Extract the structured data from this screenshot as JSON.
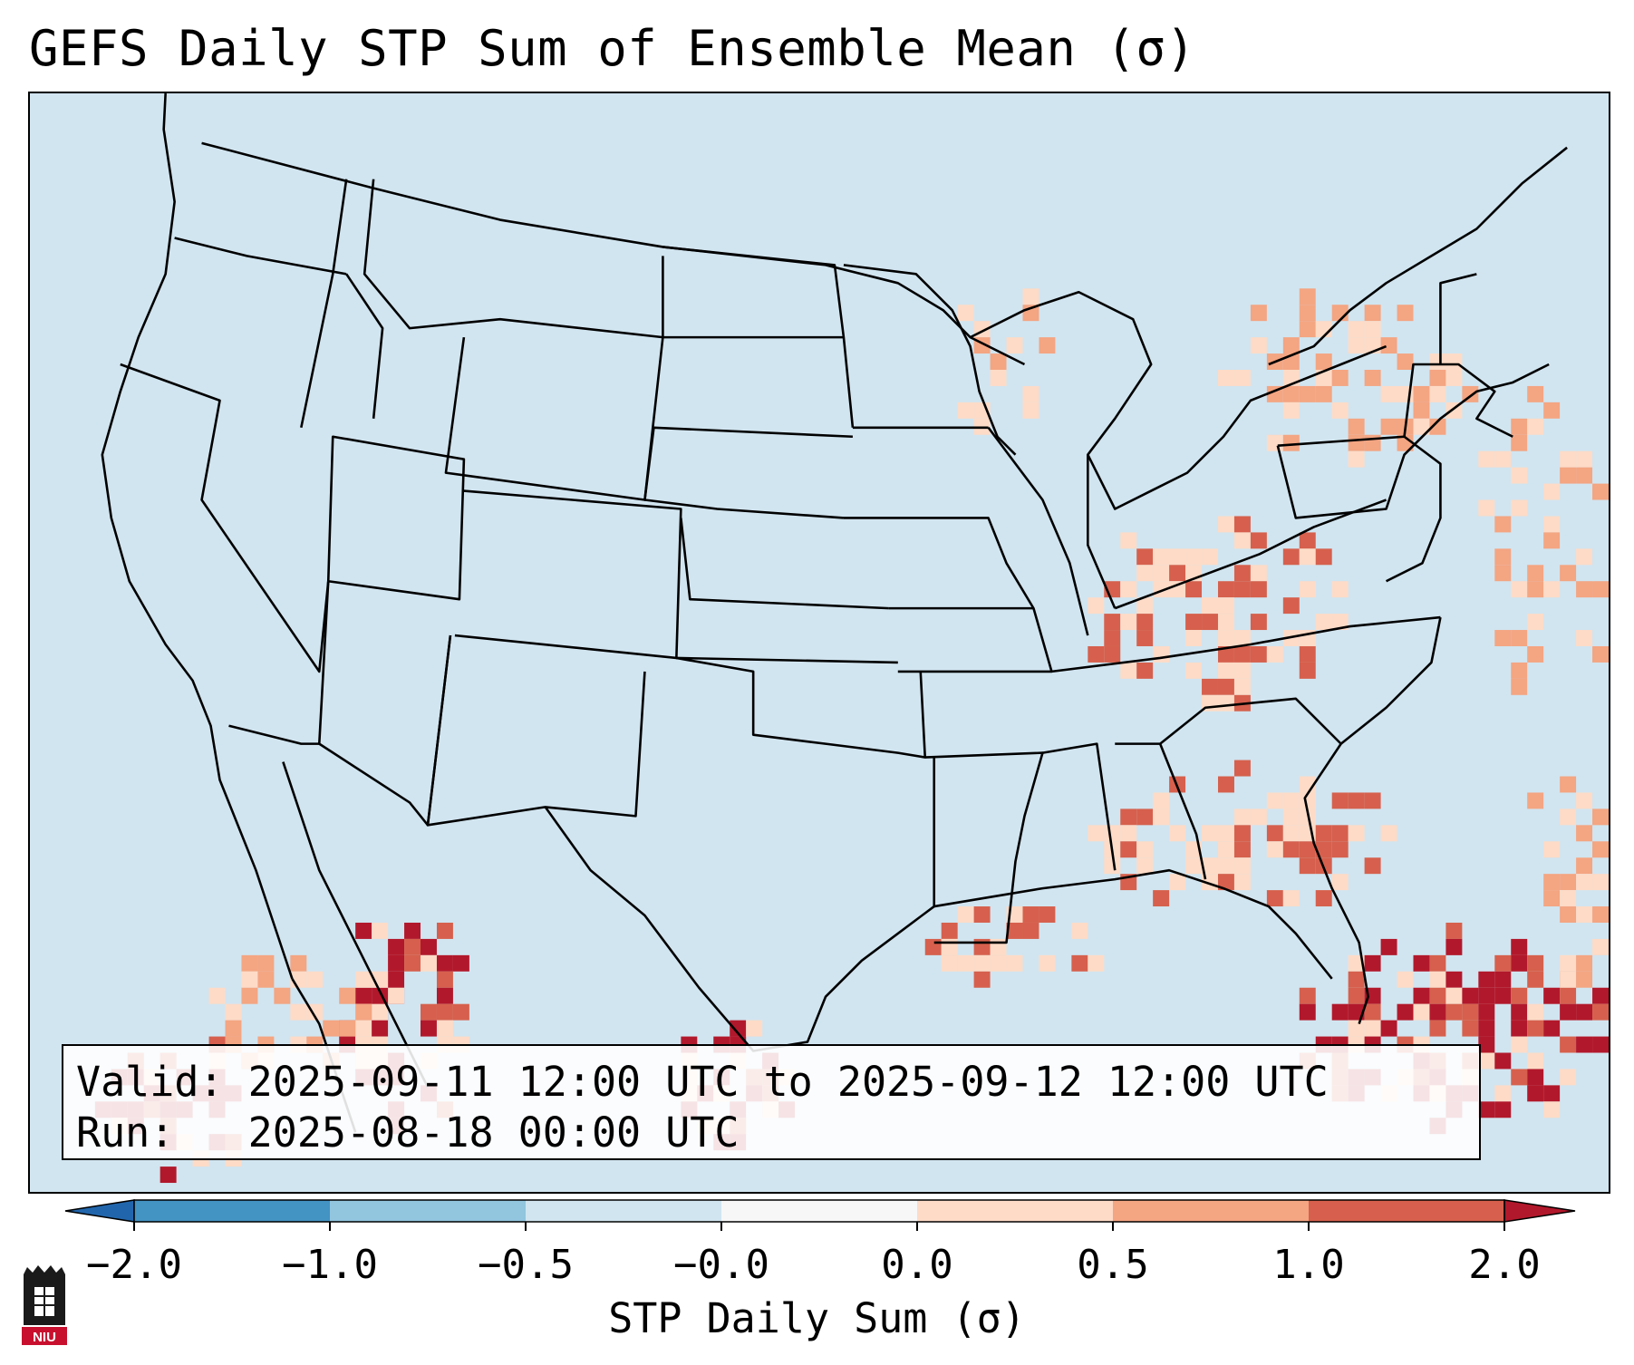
{
  "title": "GEFS Daily STP Sum of Ensemble Mean (σ)",
  "info": {
    "valid_line": "Valid: 2025-09-11 12:00 UTC to 2025-09-12 12:00 UTC",
    "run_line": "Run:   2025-08-18 00:00 UTC"
  },
  "colorbar": {
    "label": "STP Daily Sum (σ)",
    "ticks": [
      "−2.0",
      "−1.0",
      "−0.5",
      "−0.0",
      "0.0",
      "0.5",
      "1.0",
      "2.0"
    ],
    "colors": [
      "#2166ac",
      "#4393c3",
      "#92c5de",
      "#d1e5f0",
      "#f7f7f7",
      "#fddbc7",
      "#f4a582",
      "#d6604d",
      "#b2182b"
    ]
  },
  "logo": {
    "text": "NIU"
  },
  "map": {
    "background_color": "#d1e5f0",
    "hotspots": [
      {
        "name": "Ohio Valley / Appalachians",
        "level": 1.0
      },
      {
        "name": "Southeast",
        "level": 1.0
      },
      {
        "name": "Gulf Coast",
        "level": 1.0
      },
      {
        "name": "Bahamas / Western Atlantic",
        "level": 2.0
      },
      {
        "name": "Northwest Mexico",
        "level": 2.0
      },
      {
        "name": "South Texas / Northeast Mexico",
        "level": 2.0
      },
      {
        "name": "Southern Ontario / Quebec",
        "level": 0.5
      }
    ]
  }
}
